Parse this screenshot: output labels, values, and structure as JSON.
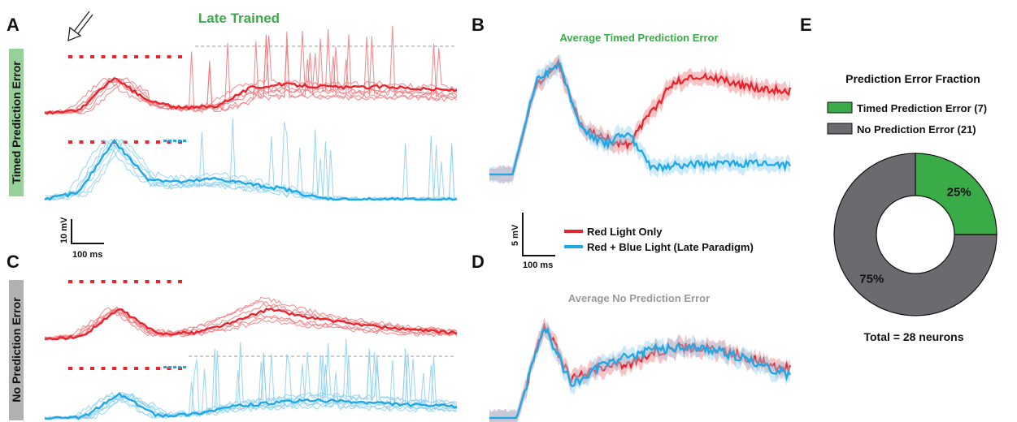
{
  "figure": {
    "main_title": "Late Trained",
    "panels": {
      "A": "A",
      "B": "B",
      "C": "C",
      "D": "D",
      "E": "E"
    },
    "side_labels": {
      "timed": "Timed Prediction Error",
      "none": "No Prediction Error"
    },
    "scalebars": {
      "A": {
        "v": "10 mV",
        "h": "100 ms"
      },
      "B": {
        "v": "5 mV",
        "h": "100 ms"
      }
    },
    "legend_traces": [
      {
        "label": "Red Light Only",
        "color": "#e8252c"
      },
      {
        "label": "Red + Blue Light (Late Paradigm)",
        "color": "#1fa8e6"
      }
    ],
    "colors": {
      "red": "#e8252c",
      "red_light": "#f07a7e",
      "blue": "#1fa8e6",
      "blue_light": "#8fd0f0",
      "green": "#3aac47",
      "gray": "#6b6b6f",
      "side_green": "#96d19a",
      "side_gray": "#b1b1b1"
    }
  },
  "chart_data": [
    {
      "panel": "B",
      "type": "line",
      "title": "Average Timed Prediction Error",
      "series": [
        {
          "name": "Red Light Only",
          "values": [
            0.0,
            0.0,
            7.6,
            9.5,
            4.0,
            3.0,
            2.6,
            5.4,
            8.0,
            8.5,
            8.3,
            7.6,
            7.4,
            7.2
          ]
        },
        {
          "name": "Red + Blue Light (Late Paradigm)",
          "values": [
            0.0,
            0.0,
            7.9,
            9.6,
            3.8,
            2.6,
            3.6,
            0.6,
            0.8,
            0.9,
            0.9,
            0.9,
            0.9,
            0.8
          ]
        }
      ]
    },
    {
      "panel": "D",
      "type": "line",
      "title": "Average No Prediction Error",
      "series": [
        {
          "name": "Red Light Only",
          "values": [
            0.0,
            0.0,
            7.4,
            3.0,
            4.0,
            4.2,
            5.2,
            5.6,
            5.5,
            5.0,
            4.4,
            3.8
          ]
        },
        {
          "name": "Red + Blue Light (Late Paradigm)",
          "values": [
            0.0,
            0.0,
            7.3,
            2.6,
            4.0,
            4.8,
            5.4,
            5.6,
            5.4,
            4.9,
            4.1,
            3.4
          ]
        }
      ]
    },
    {
      "panel": "E",
      "type": "pie",
      "title": "Prediction Error Fraction",
      "slices": [
        {
          "label": "Timed Prediction Error (7)",
          "value": 7,
          "percent_label": "25%",
          "color": "#3aac47"
        },
        {
          "label": "No Prediction Error (21)",
          "value": 21,
          "percent_label": "75%",
          "color": "#6b6b6f"
        }
      ],
      "footer": "Total = 28 neurons"
    }
  ]
}
